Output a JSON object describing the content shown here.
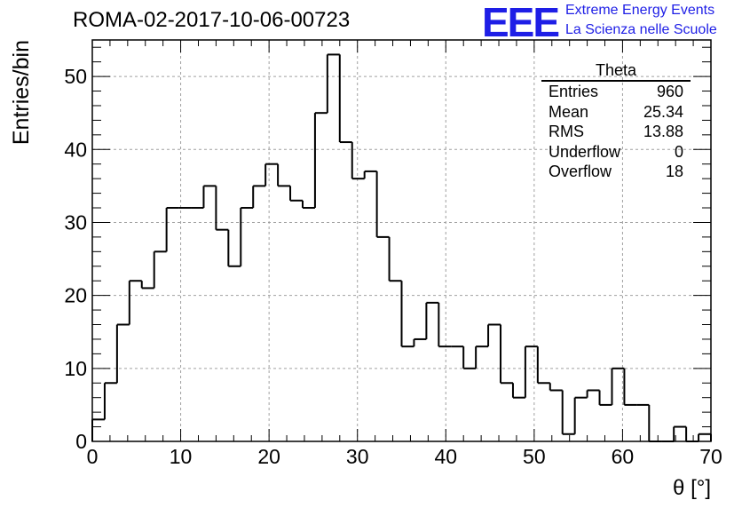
{
  "header": {
    "title": "ROMA-02-2017-10-06-00723",
    "logo_mark": "EEE",
    "logo_line1": "Extreme Energy Events",
    "logo_line2": "La Scienza nelle Scuole",
    "logo_color": "#1e1ee6"
  },
  "stats": {
    "title": "Theta",
    "rows": [
      {
        "label": "Entries",
        "value": "960"
      },
      {
        "label": "Mean",
        "value": "25.34"
      },
      {
        "label": "RMS",
        "value": "13.88"
      },
      {
        "label": "Underflow",
        "value": "0"
      },
      {
        "label": "Overflow",
        "value": "18"
      }
    ]
  },
  "chart_data": {
    "type": "bar",
    "histogram": true,
    "xlabel": "θ [°]",
    "ylabel": "Entries/bin",
    "xlim": [
      0,
      70
    ],
    "ylim": [
      0,
      55
    ],
    "bin_width": 1.4,
    "bin_edges_start": 0,
    "values": [
      3,
      8,
      16,
      22,
      21,
      26,
      32,
      32,
      32,
      35,
      29,
      24,
      32,
      35,
      38,
      35,
      33,
      32,
      45,
      53,
      41,
      36,
      37,
      28,
      22,
      13,
      14,
      19,
      13,
      13,
      10,
      13,
      16,
      8,
      6,
      13,
      8,
      7,
      1,
      6,
      7,
      5,
      10,
      5,
      5,
      0,
      0,
      2,
      0,
      1
    ],
    "xticks": [
      "0",
      "10",
      "20",
      "30",
      "40",
      "50",
      "60",
      "70"
    ],
    "yticks": [
      "0",
      "10",
      "20",
      "30",
      "40",
      "50"
    ],
    "grid": true,
    "line_color": "#000000",
    "grid_color": "#a0a0a0"
  }
}
